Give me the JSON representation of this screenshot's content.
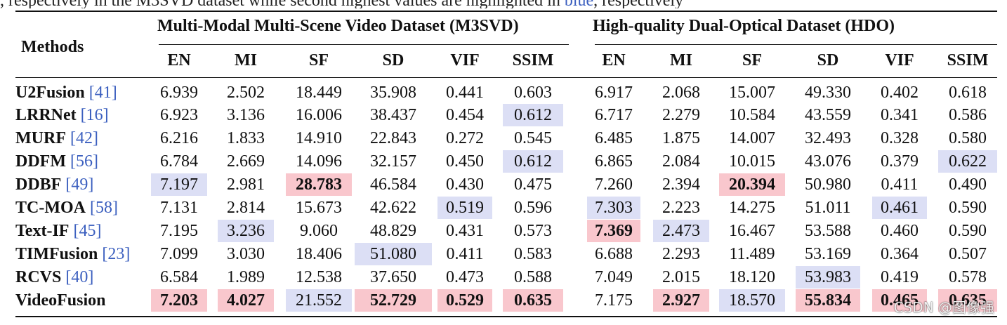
{
  "caption_fragment": {
    "before": ", respectively in the M3SVD dataset while second highest values are highlighted in ",
    "link": "blue",
    "after": ", respectively"
  },
  "table": {
    "row_header": "Methods",
    "groups": [
      {
        "label": "Multi-Modal Multi-Scene Video Dataset (M3SVD)"
      },
      {
        "label": "High-quality Dual-Optical Dataset (HDO)"
      }
    ],
    "metrics": [
      "EN",
      "MI",
      "SF",
      "SD",
      "VIF",
      "SSIM",
      "EN",
      "MI",
      "SF",
      "SD",
      "VIF",
      "SSIM"
    ],
    "rows": [
      {
        "name": "U2Fusion",
        "cite": "[41]",
        "cells": [
          {
            "v": "6.939"
          },
          {
            "v": "2.502"
          },
          {
            "v": "18.449"
          },
          {
            "v": "35.908"
          },
          {
            "v": "0.441"
          },
          {
            "v": "0.603"
          },
          {
            "v": "6.917"
          },
          {
            "v": "2.068"
          },
          {
            "v": "15.007"
          },
          {
            "v": "49.330"
          },
          {
            "v": "0.402"
          },
          {
            "v": "0.618"
          }
        ]
      },
      {
        "name": "LRRNet",
        "cite": "[16]",
        "cells": [
          {
            "v": "6.923"
          },
          {
            "v": "3.136"
          },
          {
            "v": "16.006"
          },
          {
            "v": "38.437"
          },
          {
            "v": "0.454"
          },
          {
            "v": "0.612",
            "h": "second"
          },
          {
            "v": "6.717"
          },
          {
            "v": "2.279"
          },
          {
            "v": "10.584"
          },
          {
            "v": "43.559"
          },
          {
            "v": "0.341"
          },
          {
            "v": "0.586"
          }
        ]
      },
      {
        "name": "MURF",
        "cite": "[42]",
        "cells": [
          {
            "v": "6.216"
          },
          {
            "v": "1.833"
          },
          {
            "v": "14.910"
          },
          {
            "v": "22.843"
          },
          {
            "v": "0.272"
          },
          {
            "v": "0.545"
          },
          {
            "v": "6.485"
          },
          {
            "v": "1.875"
          },
          {
            "v": "14.007"
          },
          {
            "v": "32.493"
          },
          {
            "v": "0.328"
          },
          {
            "v": "0.580"
          }
        ]
      },
      {
        "name": "DDFM",
        "cite": "[56]",
        "cells": [
          {
            "v": "6.784"
          },
          {
            "v": "2.669"
          },
          {
            "v": "14.096"
          },
          {
            "v": "32.157"
          },
          {
            "v": "0.450"
          },
          {
            "v": "0.612",
            "h": "second"
          },
          {
            "v": "6.865"
          },
          {
            "v": "2.084"
          },
          {
            "v": "10.015"
          },
          {
            "v": "43.076"
          },
          {
            "v": "0.379"
          },
          {
            "v": "0.622",
            "h": "second"
          }
        ]
      },
      {
        "name": "DDBF",
        "cite": "[49]",
        "cells": [
          {
            "v": "7.197",
            "h": "second"
          },
          {
            "v": "2.981"
          },
          {
            "v": "28.783",
            "h": "best"
          },
          {
            "v": "46.584"
          },
          {
            "v": "0.430"
          },
          {
            "v": "0.475"
          },
          {
            "v": "7.260"
          },
          {
            "v": "2.394"
          },
          {
            "v": "20.394",
            "h": "best"
          },
          {
            "v": "50.980"
          },
          {
            "v": "0.411"
          },
          {
            "v": "0.490"
          }
        ]
      },
      {
        "name": "TC-MOA",
        "cite": "[58]",
        "cells": [
          {
            "v": "7.131"
          },
          {
            "v": "2.814"
          },
          {
            "v": "15.673"
          },
          {
            "v": "42.622"
          },
          {
            "v": "0.519",
            "h": "second"
          },
          {
            "v": "0.596"
          },
          {
            "v": "7.303",
            "h": "second"
          },
          {
            "v": "2.223"
          },
          {
            "v": "14.275"
          },
          {
            "v": "51.011"
          },
          {
            "v": "0.461",
            "h": "second"
          },
          {
            "v": "0.590"
          }
        ]
      },
      {
        "name": "Text-IF",
        "cite": "[45]",
        "cells": [
          {
            "v": "7.195"
          },
          {
            "v": "3.236",
            "h": "second"
          },
          {
            "v": "9.060"
          },
          {
            "v": "48.829"
          },
          {
            "v": "0.431"
          },
          {
            "v": "0.573"
          },
          {
            "v": "7.369",
            "h": "best"
          },
          {
            "v": "2.473",
            "h": "second"
          },
          {
            "v": "16.467"
          },
          {
            "v": "53.588"
          },
          {
            "v": "0.460"
          },
          {
            "v": "0.590"
          }
        ]
      },
      {
        "name": "TIMFusion",
        "cite": "[23]",
        "cells": [
          {
            "v": "7.099"
          },
          {
            "v": "3.030"
          },
          {
            "v": "18.406"
          },
          {
            "v": "51.080",
            "h": "second"
          },
          {
            "v": "0.411"
          },
          {
            "v": "0.583"
          },
          {
            "v": "6.688"
          },
          {
            "v": "2.293"
          },
          {
            "v": "11.489"
          },
          {
            "v": "53.169"
          },
          {
            "v": "0.364"
          },
          {
            "v": "0.507"
          }
        ]
      },
      {
        "name": "RCVS",
        "cite": "[40]",
        "cells": [
          {
            "v": "6.584"
          },
          {
            "v": "1.989"
          },
          {
            "v": "12.538"
          },
          {
            "v": "37.650"
          },
          {
            "v": "0.473"
          },
          {
            "v": "0.588"
          },
          {
            "v": "7.049"
          },
          {
            "v": "2.015"
          },
          {
            "v": "18.120"
          },
          {
            "v": "53.983",
            "h": "second"
          },
          {
            "v": "0.419"
          },
          {
            "v": "0.578"
          }
        ]
      },
      {
        "name": "VideoFusion",
        "cite": "",
        "cells": [
          {
            "v": "7.203",
            "h": "best"
          },
          {
            "v": "4.027",
            "h": "best"
          },
          {
            "v": "21.552",
            "h": "second"
          },
          {
            "v": "52.729",
            "h": "best"
          },
          {
            "v": "0.529",
            "h": "best"
          },
          {
            "v": "0.635",
            "h": "best"
          },
          {
            "v": "7.175"
          },
          {
            "v": "2.927",
            "h": "best"
          },
          {
            "v": "18.570",
            "h": "second"
          },
          {
            "v": "55.834",
            "h": "best"
          },
          {
            "v": "0.465",
            "h": "best"
          },
          {
            "v": "0.635",
            "h": "best"
          }
        ]
      }
    ]
  },
  "watermark": "CSDN @图像强",
  "colors": {
    "best": "#f9c7cd",
    "second": "#dcdff5",
    "link": "#3b5fbf"
  }
}
